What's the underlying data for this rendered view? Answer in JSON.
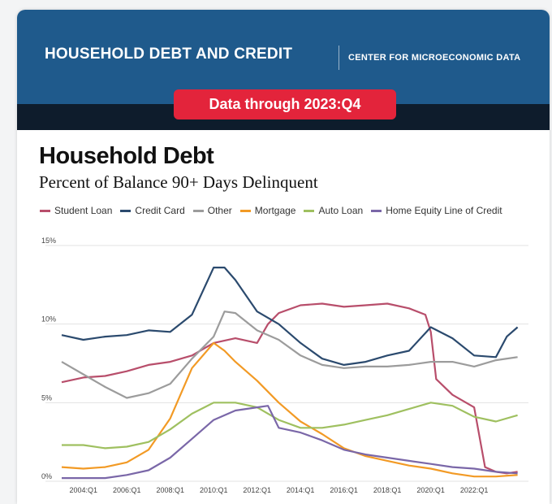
{
  "header": {
    "brand": "HOUSEHOLD DEBT AND CREDIT",
    "center": "CENTER FOR MICROECONOMIC DATA",
    "pill": "Data through 2023:Q4"
  },
  "colors": {
    "banner": "#1f5a8c",
    "pill": "#e3243b",
    "student_loan": "#b84e6b",
    "credit_card": "#2b4a6e",
    "other": "#9c9c9c",
    "mortgage": "#f29a25",
    "auto_loan": "#9fc060",
    "heloc": "#7a67a8"
  },
  "chart_data": {
    "type": "line",
    "title": "Household Debt",
    "subtitle": "Percent of Balance 90+ Days Delinquent",
    "ylim": [
      0,
      15
    ],
    "yticks": [
      "0%",
      "5%",
      "10%",
      "15%"
    ],
    "xticks": [
      "2004:Q1",
      "2006:Q1",
      "2008:Q1",
      "2010:Q1",
      "2012:Q1",
      "2014:Q1",
      "2016:Q1",
      "2018:Q1",
      "2020:Q1",
      "2022:Q1"
    ],
    "xlim": [
      2003,
      2024.5
    ],
    "grid": "horizontal",
    "legend": "top",
    "series": [
      {
        "name": "Student Loan",
        "color": "#b84e6b",
        "x": [
          2003.0,
          2004.0,
          2005.0,
          2006.0,
          2007.0,
          2008.0,
          2009.0,
          2010.0,
          2011.0,
          2012.0,
          2012.5,
          2013.0,
          2014.0,
          2015.0,
          2016.0,
          2017.0,
          2018.0,
          2019.0,
          2019.75,
          2020.0,
          2020.25,
          2021.0,
          2022.0,
          2022.5,
          2023.0,
          2023.5,
          2024.0
        ],
        "y": [
          6.3,
          6.6,
          6.7,
          7.0,
          7.4,
          7.6,
          8.0,
          8.8,
          9.1,
          8.8,
          10.0,
          10.7,
          11.2,
          11.3,
          11.1,
          11.2,
          11.3,
          11.0,
          10.6,
          9.5,
          6.5,
          5.5,
          4.7,
          0.9,
          0.6,
          0.5,
          0.6
        ]
      },
      {
        "name": "Credit Card",
        "color": "#2b4a6e",
        "x": [
          2003.0,
          2004.0,
          2005.0,
          2006.0,
          2007.0,
          2008.0,
          2009.0,
          2010.0,
          2010.5,
          2011.0,
          2012.0,
          2013.0,
          2014.0,
          2015.0,
          2016.0,
          2017.0,
          2018.0,
          2019.0,
          2020.0,
          2021.0,
          2022.0,
          2023.0,
          2023.5,
          2024.0
        ],
        "y": [
          9.3,
          9.0,
          9.2,
          9.3,
          9.6,
          9.5,
          10.6,
          13.6,
          13.6,
          12.8,
          10.8,
          10.0,
          8.8,
          7.8,
          7.4,
          7.6,
          8.0,
          8.3,
          9.8,
          9.1,
          8.0,
          7.9,
          9.2,
          9.8
        ]
      },
      {
        "name": "Other",
        "color": "#9c9c9c",
        "x": [
          2003.0,
          2004.0,
          2005.0,
          2006.0,
          2007.0,
          2008.0,
          2009.0,
          2010.0,
          2010.5,
          2011.0,
          2012.0,
          2013.0,
          2014.0,
          2015.0,
          2016.0,
          2017.0,
          2018.0,
          2019.0,
          2020.0,
          2021.0,
          2022.0,
          2023.0,
          2024.0
        ],
        "y": [
          7.6,
          6.8,
          6.0,
          5.3,
          5.6,
          6.2,
          7.8,
          9.2,
          10.8,
          10.7,
          9.6,
          9.0,
          8.0,
          7.4,
          7.2,
          7.3,
          7.3,
          7.4,
          7.6,
          7.6,
          7.3,
          7.7,
          7.9
        ]
      },
      {
        "name": "Mortgage",
        "color": "#f29a25",
        "x": [
          2003.0,
          2004.0,
          2005.0,
          2006.0,
          2007.0,
          2008.0,
          2009.0,
          2010.0,
          2010.5,
          2011.0,
          2012.0,
          2013.0,
          2014.0,
          2015.0,
          2016.0,
          2017.0,
          2018.0,
          2019.0,
          2020.0,
          2021.0,
          2022.0,
          2023.0,
          2024.0
        ],
        "y": [
          0.9,
          0.8,
          0.9,
          1.2,
          2.0,
          4.0,
          7.2,
          8.8,
          8.3,
          7.6,
          6.4,
          5.0,
          3.8,
          3.0,
          2.1,
          1.6,
          1.3,
          1.0,
          0.8,
          0.5,
          0.3,
          0.3,
          0.4
        ]
      },
      {
        "name": "Auto Loan",
        "color": "#9fc060",
        "x": [
          2003.0,
          2004.0,
          2005.0,
          2006.0,
          2007.0,
          2008.0,
          2009.0,
          2010.0,
          2011.0,
          2012.0,
          2013.0,
          2014.0,
          2015.0,
          2016.0,
          2017.0,
          2018.0,
          2019.0,
          2020.0,
          2021.0,
          2022.0,
          2023.0,
          2024.0
        ],
        "y": [
          2.3,
          2.3,
          2.1,
          2.2,
          2.5,
          3.3,
          4.3,
          5.0,
          5.0,
          4.7,
          3.9,
          3.4,
          3.4,
          3.6,
          3.9,
          4.2,
          4.6,
          5.0,
          4.8,
          4.1,
          3.8,
          4.2
        ]
      },
      {
        "name": "Home Equity Line of Credit",
        "color": "#7a67a8",
        "x": [
          2003.0,
          2004.0,
          2005.0,
          2006.0,
          2007.0,
          2008.0,
          2009.0,
          2010.0,
          2011.0,
          2012.0,
          2012.5,
          2013.0,
          2014.0,
          2015.0,
          2016.0,
          2017.0,
          2018.0,
          2019.0,
          2020.0,
          2021.0,
          2022.0,
          2023.0,
          2024.0
        ],
        "y": [
          0.2,
          0.2,
          0.2,
          0.4,
          0.7,
          1.5,
          2.7,
          3.9,
          4.5,
          4.7,
          4.8,
          3.4,
          3.1,
          2.6,
          2.0,
          1.7,
          1.5,
          1.3,
          1.1,
          0.9,
          0.8,
          0.6,
          0.5
        ]
      }
    ]
  }
}
